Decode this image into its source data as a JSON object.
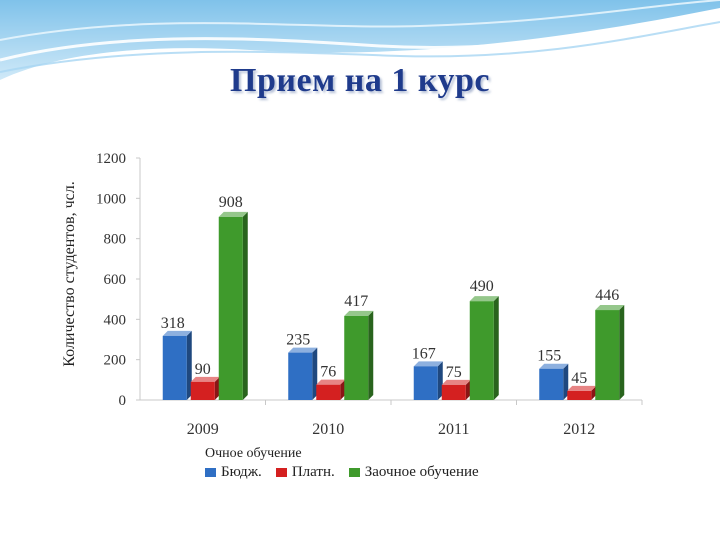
{
  "slide": {
    "title": "Прием на 1 курс"
  },
  "colors": {
    "title": "#1f3b8c",
    "budget": "#2f6fc4",
    "paid": "#d42020",
    "correspondence": "#3f9a2c"
  },
  "chart_data": {
    "type": "bar",
    "title": "",
    "ylabel": "Количество студентов, чсл.",
    "xlabel": "",
    "ylim": [
      0,
      1200
    ],
    "yticks": [
      0,
      200,
      400,
      600,
      800,
      1000,
      1200
    ],
    "categories": [
      "2009",
      "2010",
      "2011",
      "2012"
    ],
    "series": [
      {
        "name": "Бюдж.",
        "values": [
          318,
          235,
          167,
          155
        ],
        "color": "#2f6fc4"
      },
      {
        "name": "Платн.",
        "values": [
          90,
          76,
          75,
          45
        ],
        "color": "#d42020"
      },
      {
        "name": "Заочное обучение",
        "values": [
          908,
          417,
          490,
          446
        ],
        "color": "#3f9a2c"
      }
    ],
    "legend_caption": "Очное обучение",
    "legend_position": "bottom",
    "grid": false
  }
}
